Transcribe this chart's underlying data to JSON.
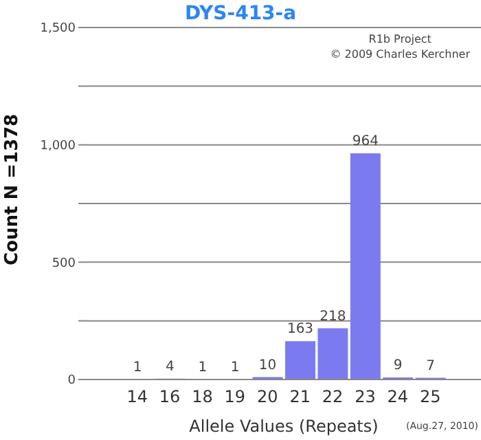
{
  "chart_data": {
    "type": "bar",
    "title": "DYS-413-a",
    "xlabel": "Allele Values (Repeats)",
    "ylabel": "Count N =1378",
    "categories": [
      "14",
      "16",
      "18",
      "19",
      "20",
      "21",
      "22",
      "23",
      "24",
      "25"
    ],
    "values": [
      1,
      4,
      1,
      1,
      10,
      163,
      218,
      964,
      9,
      7
    ],
    "color": "#7b7bef",
    "data_labels": true,
    "ylim": [
      0,
      1500
    ],
    "yticks": [
      0,
      {
        "value": 250,
        "label": null
      },
      500,
      {
        "value": 750,
        "label": null
      },
      "1,000",
      {
        "value": 1250,
        "label": null
      },
      "1,500"
    ],
    "grid": "y",
    "annotations": [
      "R1b Project",
      "© 2009 Charles Kerchner",
      "(Aug.27, 2010)"
    ]
  }
}
